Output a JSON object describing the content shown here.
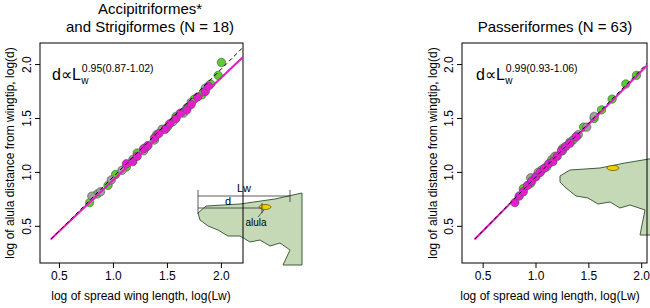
{
  "chart_data": [
    {
      "type": "scatter",
      "title": "Accipitriformes*\nand Strigiformes (N = 18)",
      "x_label": "log of spread wing length, log(Lw)",
      "y_label": "log of alula distance from wingtip, log(d)",
      "annotation": {
        "text": "d∝L",
        "subscript": "w",
        "superscript": "0.95(0.87-1.02)"
      },
      "inset": {
        "length_label": "Lw",
        "distance_label": "d",
        "alula_label": "alula"
      },
      "xlim": [
        0.32,
        2.2
      ],
      "ylim": [
        0.16,
        2.2
      ],
      "xticks": [
        0.5,
        {
          "value": 1,
          "label": "1.0"
        },
        1.5,
        {
          "value": 2,
          "label": "2.0"
        }
      ],
      "yticks": [
        0.5,
        {
          "value": 1,
          "label": "1.0"
        },
        1.5,
        {
          "value": 2,
          "label": "2.0"
        }
      ],
      "series": [
        {
          "color": "#5ccd2f",
          "marker": "circle",
          "x": [
            0.78,
            0.85,
            0.95,
            1.02,
            1.12,
            1.22,
            1.3,
            1.4,
            1.5,
            1.58,
            1.68,
            1.75,
            1.82,
            1.9,
            1.97,
            2.0
          ],
          "values": [
            0.72,
            0.8,
            0.88,
            0.98,
            1.05,
            1.18,
            1.23,
            1.35,
            1.42,
            1.52,
            1.6,
            1.68,
            1.72,
            1.82,
            1.9,
            2.02
          ]
        },
        {
          "color": "#a0a0a0",
          "marker": "circle",
          "x": [
            0.8,
            0.88,
            0.98,
            1.08,
            1.18,
            1.28,
            1.38,
            1.45,
            1.55,
            1.65,
            1.72,
            1.85
          ],
          "values": [
            0.78,
            0.82,
            0.93,
            1.02,
            1.12,
            1.2,
            1.3,
            1.4,
            1.47,
            1.55,
            1.65,
            1.78
          ]
        },
        {
          "color": "#e61ed2",
          "marker": "circle",
          "x": [
            1.12,
            1.18,
            1.22,
            1.28,
            1.32,
            1.38,
            1.42,
            1.48,
            1.52,
            1.58,
            1.62,
            1.68,
            1.72,
            1.78,
            1.85,
            1.88
          ],
          "values": [
            1.08,
            1.1,
            1.15,
            1.22,
            1.25,
            1.32,
            1.36,
            1.4,
            1.45,
            1.5,
            1.55,
            1.58,
            1.63,
            1.7,
            1.75,
            1.8
          ]
        },
        {
          "type": "line",
          "color": "#e020c0",
          "line_style": "solid",
          "x": [
            0.42,
            2.2
          ],
          "values": [
            0.38,
            2.07
          ]
        },
        {
          "type": "line",
          "color": "#000000",
          "line_style": "dashed",
          "x": [
            0.42,
            2.2
          ],
          "values": [
            0.38,
            2.16
          ]
        }
      ]
    },
    {
      "type": "scatter",
      "title": "Passeriformes (N = 63)",
      "x_label": "log of spread wing length, log(Lw)",
      "y_label": "log of alula distance from wingtip, log(d)",
      "annotation": {
        "text": "d∝L",
        "subscript": "w",
        "superscript": "0.99(0.93-1.06)"
      },
      "xlim": [
        0.3,
        2.05
      ],
      "ylim": [
        0.16,
        2.2
      ],
      "xticks": [
        0.5,
        {
          "value": 1,
          "label": "1.0"
        },
        1.5,
        {
          "value": 2,
          "label": "2.0"
        }
      ],
      "yticks": [
        0.5,
        {
          "value": 1,
          "label": "1.0"
        },
        1.5,
        {
          "value": 2,
          "label": "2.0"
        }
      ],
      "series": [
        {
          "color": "#5ccd2f",
          "marker": "circle",
          "x": [
            0.88,
            0.95,
            1.05,
            1.15,
            1.25,
            1.35,
            1.45,
            1.55,
            1.62,
            1.72,
            1.85,
            1.95
          ],
          "values": [
            0.85,
            0.9,
            1.02,
            1.12,
            1.22,
            1.3,
            1.42,
            1.5,
            1.58,
            1.68,
            1.82,
            1.9
          ]
        },
        {
          "color": "#a0a0a0",
          "marker": "circle",
          "x": [
            0.95,
            1.02,
            1.1,
            1.18,
            1.25,
            1.32,
            1.4,
            1.48,
            1.55
          ],
          "values": [
            0.95,
            1.0,
            1.05,
            1.15,
            1.2,
            1.28,
            1.35,
            1.42,
            1.52
          ]
        },
        {
          "color": "#e61ed2",
          "marker": "circle",
          "x": [
            0.8,
            0.84,
            0.88,
            0.92,
            0.96,
            1.0,
            1.04,
            1.08,
            1.12,
            1.16,
            1.2,
            1.24,
            1.28,
            1.32,
            1.38
          ],
          "values": [
            0.72,
            0.78,
            0.82,
            0.88,
            0.92,
            0.96,
            1.0,
            1.04,
            1.08,
            1.1,
            1.15,
            1.2,
            1.24,
            1.27,
            1.33
          ]
        },
        {
          "type": "line",
          "color": "#e020c0",
          "line_style": "solid",
          "x": [
            0.42,
            2.2
          ],
          "values": [
            0.38,
            2.14
          ]
        },
        {
          "type": "line",
          "color": "#000000",
          "line_style": "dashed",
          "x": [
            0.42,
            2.2
          ],
          "values": [
            0.38,
            2.16
          ]
        }
      ]
    }
  ]
}
